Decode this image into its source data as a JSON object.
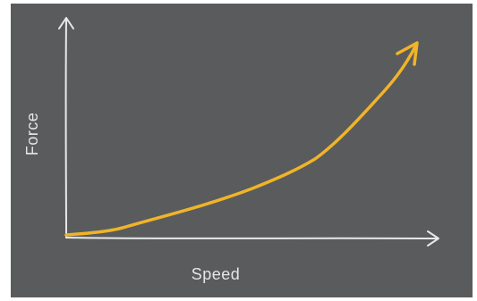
{
  "diagram": {
    "x_axis_label": "Speed",
    "y_axis_label": "Force",
    "colors": {
      "background": "#5a5b5d",
      "axes": "#e8e8e8",
      "curve": "#f0b429"
    }
  }
}
